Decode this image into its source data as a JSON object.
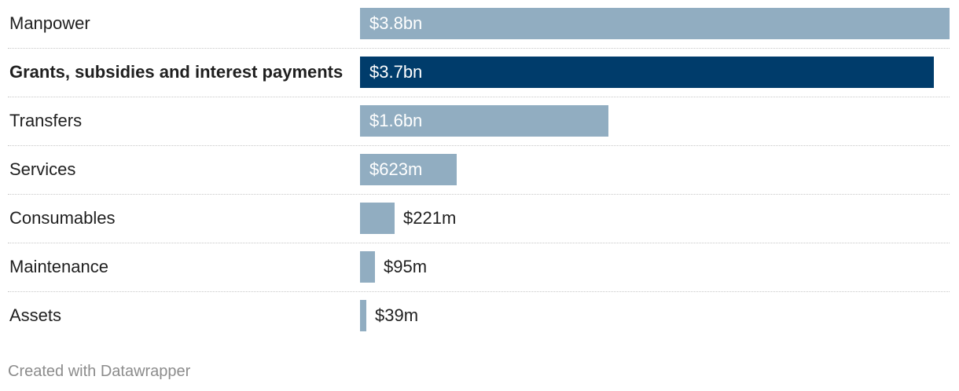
{
  "chart_data": {
    "type": "bar",
    "orientation": "horizontal",
    "categories": [
      "Manpower",
      "Grants, subsidies and interest payments",
      "Transfers",
      "Services",
      "Consumables",
      "Maintenance",
      "Assets"
    ],
    "values": [
      3.8,
      3.7,
      1.6,
      0.623,
      0.221,
      0.095,
      0.039
    ],
    "value_labels": [
      "$3.8bn",
      "$3.7bn",
      "$1.6bn",
      "$623m",
      "$221m",
      "$95m",
      "$39m"
    ],
    "units": "billion dollars",
    "highlighted_category": "Grants, subsidies and interest payments",
    "xlim": [
      0,
      3.8
    ],
    "grid": false,
    "colors": {
      "default_bar": "#91adc1",
      "highlight_bar": "#003c6b"
    }
  },
  "footer": {
    "credit": "Created with Datawrapper"
  }
}
